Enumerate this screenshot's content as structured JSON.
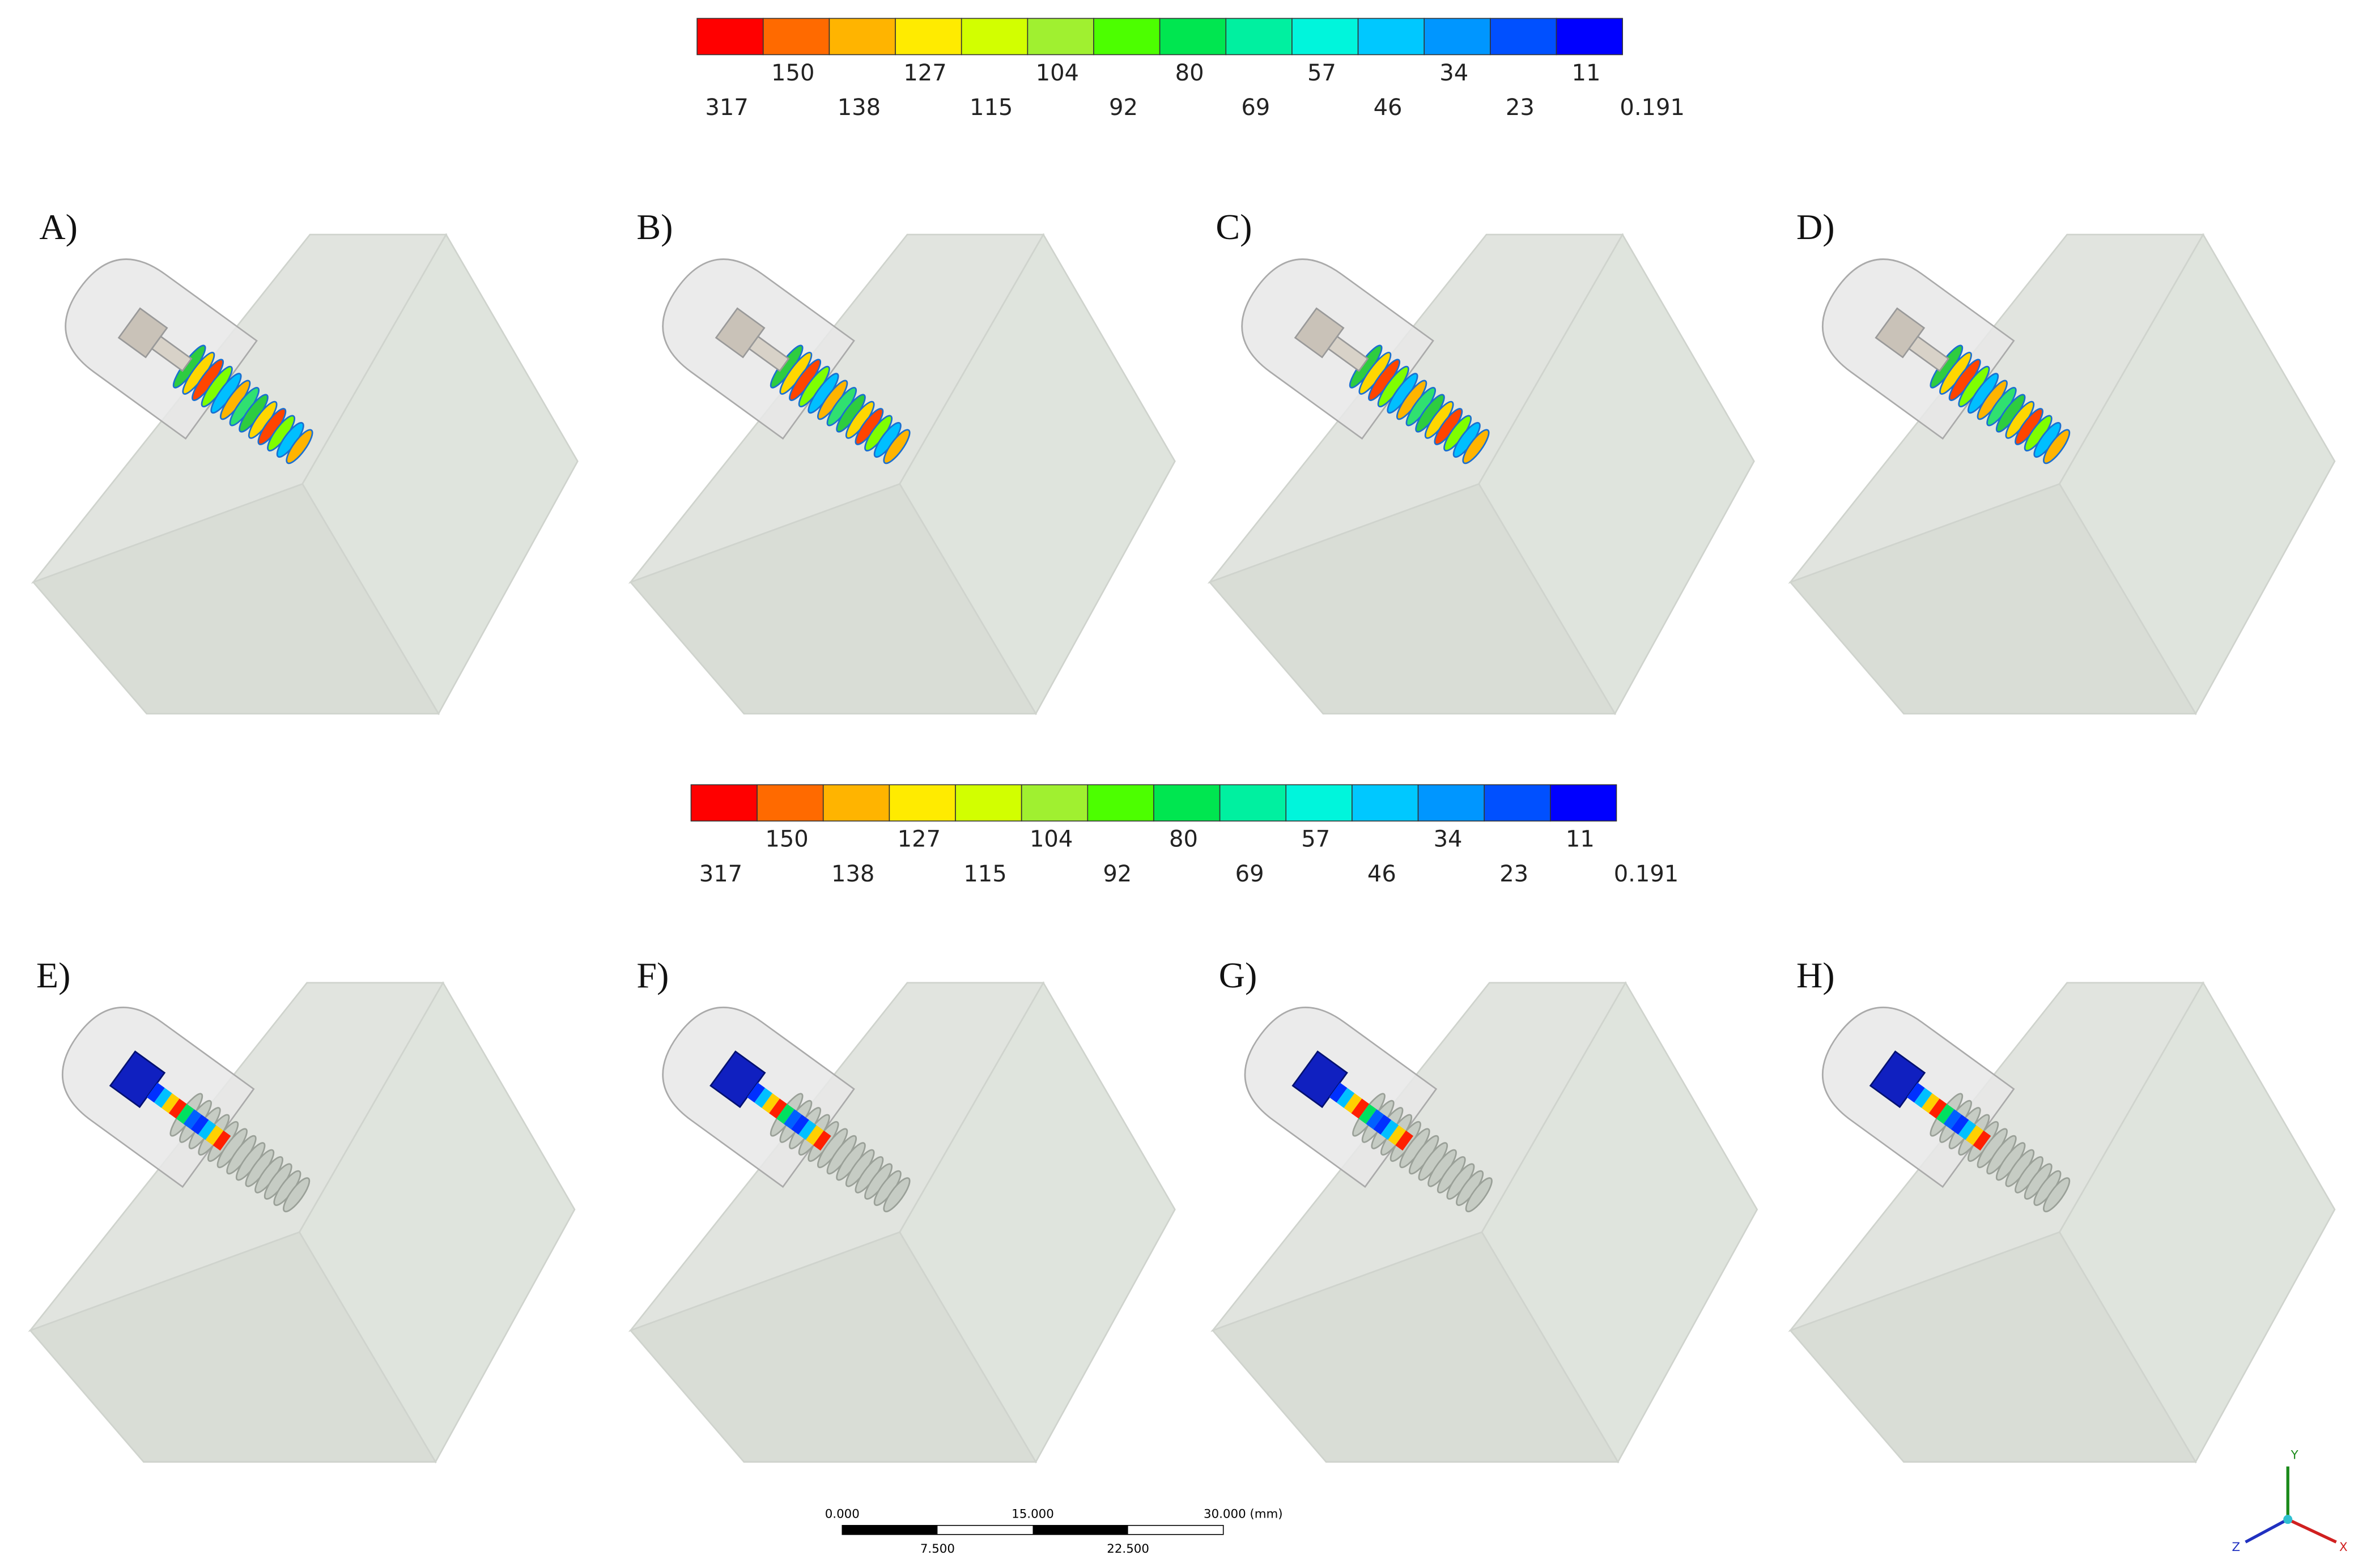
{
  "colorbars": [
    {
      "colors": [
        "#ff0000",
        "#ff6a00",
        "#ffb400",
        "#ffeb00",
        "#d2ff00",
        "#a0f030",
        "#4cff00",
        "#00e650",
        "#00f0a0",
        "#00f5dc",
        "#00c8ff",
        "#0096ff",
        "#0050ff",
        "#0000ff"
      ],
      "upper_labels": [
        "150",
        "127",
        "104",
        "80",
        "57",
        "34",
        "11"
      ],
      "lower_labels": [
        "317",
        "138",
        "115",
        "92",
        "69",
        "46",
        "23",
        "0.191"
      ]
    },
    {
      "colors": [
        "#ff0000",
        "#ff6a00",
        "#ffb400",
        "#ffeb00",
        "#d2ff00",
        "#a0f030",
        "#4cff00",
        "#00e650",
        "#00f0a0",
        "#00f5dc",
        "#00c8ff",
        "#0096ff",
        "#0050ff",
        "#0000ff"
      ],
      "upper_labels": [
        "150",
        "127",
        "104",
        "80",
        "57",
        "34",
        "11"
      ],
      "lower_labels": [
        "317",
        "138",
        "115",
        "92",
        "69",
        "46",
        "23",
        "0.191"
      ]
    }
  ],
  "panels": [
    {
      "label": "A)"
    },
    {
      "label": "B)"
    },
    {
      "label": "C)"
    },
    {
      "label": "D)"
    },
    {
      "label": "E)"
    },
    {
      "label": "F)"
    },
    {
      "label": "G)"
    },
    {
      "label": "H)"
    }
  ],
  "scale_bar": {
    "labels": [
      "0.000",
      "15.000",
      "30.000 (mm)"
    ],
    "sub_labels": [
      "7.500",
      "22.500"
    ]
  },
  "triad": {
    "y": "Y",
    "x": "X",
    "z": "Z"
  }
}
